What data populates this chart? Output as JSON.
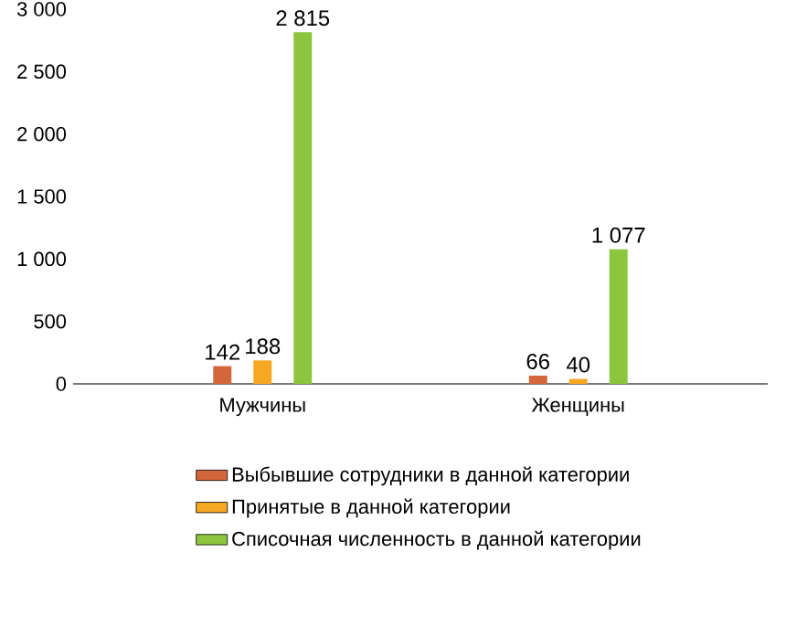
{
  "chart_data": {
    "type": "bar",
    "categories": [
      "Мужчины",
      "Женщины"
    ],
    "series": [
      {
        "name": "Выбывшие сотрудники в данной категории",
        "color": "#d4663b",
        "values": [
          142,
          66
        ],
        "value_labels": [
          "142",
          "66"
        ]
      },
      {
        "name": "Принятые в данной категории",
        "color": "#f7a823",
        "values": [
          188,
          40
        ],
        "value_labels": [
          "188",
          "40"
        ]
      },
      {
        "name": "Списочная численность в данной категории",
        "color": "#8cc63f",
        "values": [
          2815,
          1077
        ],
        "value_labels": [
          "2 815",
          "1 077"
        ]
      }
    ],
    "ylim": [
      0,
      3000
    ],
    "yticks": [
      {
        "value": 0,
        "label": "0"
      },
      {
        "value": 500,
        "label": "500"
      },
      {
        "value": 1000,
        "label": "1 000"
      },
      {
        "value": 1500,
        "label": "1 500"
      },
      {
        "value": 2000,
        "label": "2 000"
      },
      {
        "value": 2500,
        "label": "2 500"
      },
      {
        "value": 3000,
        "label": "3 000"
      }
    ],
    "grid": false,
    "legend": "bottom"
  }
}
